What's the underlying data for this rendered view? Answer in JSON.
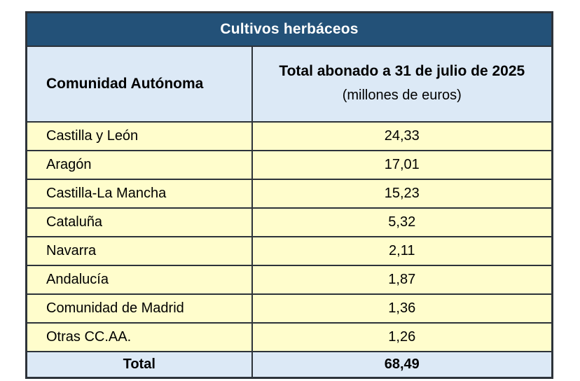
{
  "table": {
    "title": "Cultivos herbáceos",
    "columns": {
      "region": "Comunidad Autónoma",
      "amount_title": "Total abonado a 31 de julio de 2025",
      "amount_subtitle": "(millones de euros)"
    },
    "rows": [
      {
        "region": "Castilla y León",
        "amount": "24,33"
      },
      {
        "region": "Aragón",
        "amount": "17,01"
      },
      {
        "region": "Castilla-La Mancha",
        "amount": "15,23"
      },
      {
        "region": "Cataluña",
        "amount": "5,32"
      },
      {
        "region": "Navarra",
        "amount": "2,11"
      },
      {
        "region": "Andalucía",
        "amount": "1,87"
      },
      {
        "region": "Comunidad de Madrid",
        "amount": "1,36"
      },
      {
        "region": "Otras CC.AA.",
        "amount": "1,26"
      }
    ],
    "total": {
      "label": "Total",
      "amount": "68,49"
    }
  },
  "colors": {
    "title_bg": "#235178",
    "header_bg": "#DCE9F6",
    "row_bg": "#FFFDCC",
    "border": "#2d333a",
    "title_text": "#FFFFFF",
    "body_text": "#000000"
  },
  "chart_data": {
    "type": "table",
    "title": "Cultivos herbáceos",
    "columns": [
      "Comunidad Autónoma",
      "Total abonado a 31 de julio de 2025 (millones de euros)"
    ],
    "categories": [
      "Castilla y León",
      "Aragón",
      "Castilla-La Mancha",
      "Cataluña",
      "Navarra",
      "Andalucía",
      "Comunidad de Madrid",
      "Otras CC.AA."
    ],
    "values": [
      24.33,
      17.01,
      15.23,
      5.32,
      2.11,
      1.87,
      1.36,
      1.26
    ],
    "total_label": "Total",
    "total": 68.49,
    "unit": "millones de euros",
    "as_of": "31 de julio de 2025"
  }
}
